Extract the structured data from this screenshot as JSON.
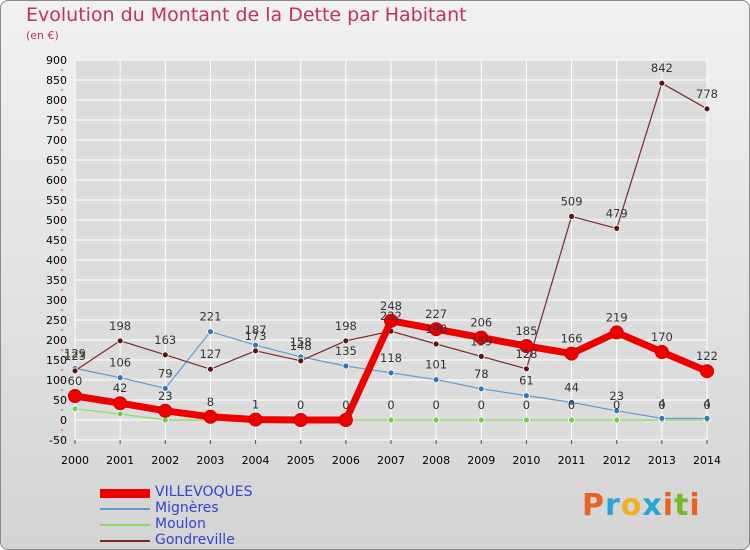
{
  "title": "Evolution du Montant de la Dette par Habitant",
  "subtitle": "(en €)",
  "logo_text": "Proxiti",
  "logo_colors": [
    "#e8641e",
    "#2aa3d8",
    "#f0b020",
    "#2aa3d8",
    "#e8641e",
    "#78b828",
    "#e8641e"
  ],
  "colors": {
    "title": "#c0306a",
    "grid": "#ffffff",
    "tick_text": "#000000",
    "value_label": "#333333"
  },
  "chart_data": {
    "type": "line",
    "ylim": [
      -50,
      900
    ],
    "yticks": [
      -50,
      0,
      50,
      100,
      150,
      200,
      250,
      300,
      350,
      400,
      450,
      500,
      550,
      600,
      650,
      700,
      750,
      800,
      850,
      900
    ],
    "x": [
      "2000",
      "2001",
      "2002",
      "2003",
      "2004",
      "2005",
      "2006",
      "2007",
      "2008",
      "2009",
      "2010",
      "2011",
      "2012",
      "2013",
      "2014"
    ],
    "grid": true,
    "legend_position": "bottom-left",
    "series": [
      {
        "name": "VILLEVOQUES",
        "color": "#ee0000",
        "marker": "#ee0000",
        "width": 7,
        "values": [
          60,
          42,
          23,
          8,
          1,
          0,
          0,
          248,
          227,
          206,
          185,
          166,
          219,
          170,
          122
        ],
        "labels": [
          "60",
          "42",
          "23",
          "8",
          "1",
          "0",
          "0",
          "248",
          "227",
          "206",
          "185",
          "166",
          "219",
          "170",
          "122"
        ]
      },
      {
        "name": "Mignères",
        "color": "#6699cc",
        "marker": "#3377bb",
        "width": 1.2,
        "values": [
          129,
          106,
          79,
          221,
          187,
          158,
          135,
          118,
          101,
          78,
          61,
          44,
          23,
          4,
          4
        ],
        "labels": [
          "129",
          "106",
          "79",
          "221",
          "187",
          "158",
          "135",
          "118",
          "101",
          "78",
          "61",
          "44",
          "23",
          "4",
          "4"
        ]
      },
      {
        "name": "Moulon",
        "color": "#88dd66",
        "marker": "#77cc44",
        "width": 1.2,
        "values": [
          28,
          15,
          0,
          0,
          0,
          0,
          0,
          0,
          0,
          0,
          0,
          0,
          0,
          0,
          0
        ],
        "labels": [
          null,
          null,
          null,
          null,
          null,
          null,
          null,
          "0",
          "0",
          "0",
          "0",
          "0",
          "0",
          "0",
          "0"
        ]
      },
      {
        "name": "Gondreville",
        "color": "#7a2a2a",
        "marker": "#5a1515",
        "width": 1.2,
        "values": [
          123,
          198,
          163,
          127,
          173,
          148,
          198,
          222,
          190,
          159,
          128,
          509,
          479,
          842,
          778
        ],
        "labels": [
          "123",
          "198",
          "163",
          "127",
          "173",
          "148",
          "198",
          "222",
          "190",
          "159",
          "128",
          "509",
          "479",
          "842",
          "778"
        ]
      }
    ]
  }
}
